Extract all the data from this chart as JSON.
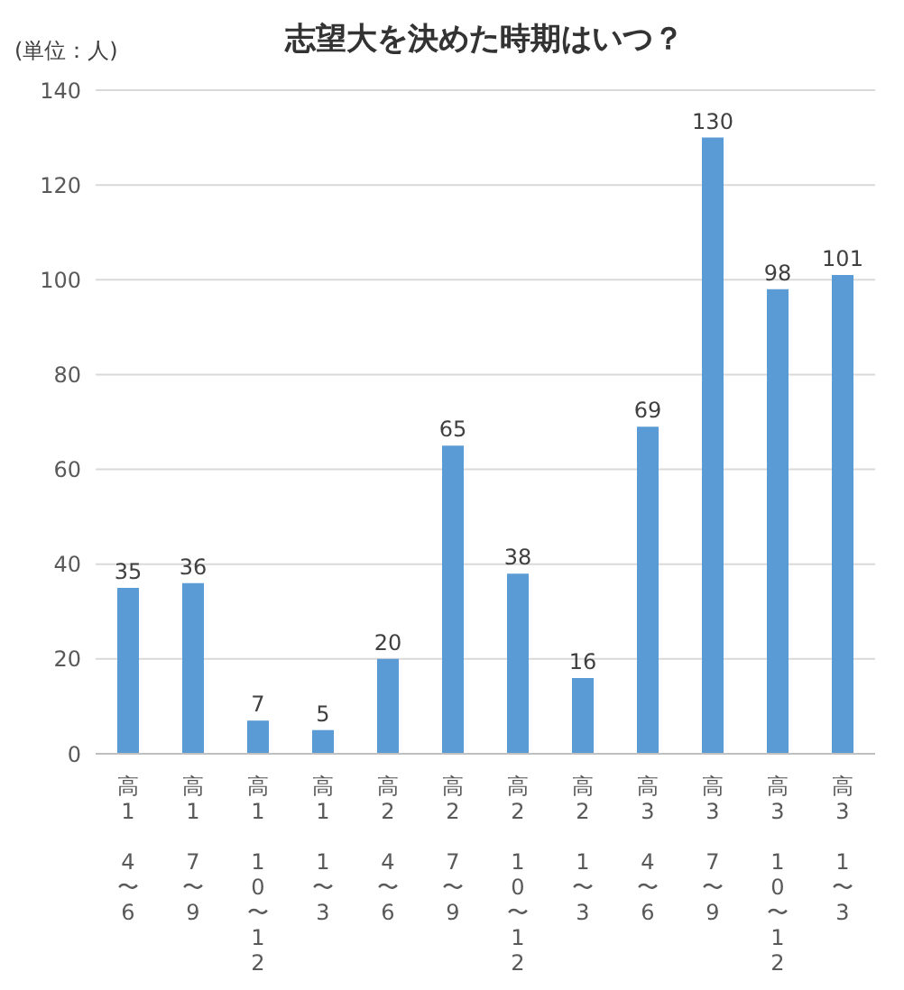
{
  "chart_data": {
    "type": "bar",
    "title": "志望大を決めた時期はいつ？",
    "annotations": [
      "(単位：人)"
    ],
    "categories": [
      "高1 4〜6",
      "高1 7〜9",
      "高1 10〜12",
      "高1 1〜3",
      "高2 4〜6",
      "高2 7〜9",
      "高2 10〜12",
      "高2 1〜3",
      "高3 4〜6",
      "高3 7〜9",
      "高3 10〜12",
      "高3 1〜3"
    ],
    "values": [
      35,
      36,
      7,
      5,
      20,
      65,
      38,
      16,
      69,
      130,
      98,
      101
    ],
    "color": "#5b9bd5",
    "ylim": [
      0,
      140
    ],
    "yticks": [
      0,
      20,
      40,
      60,
      80,
      100,
      120,
      140
    ],
    "grid": "y",
    "data_labels": true
  }
}
